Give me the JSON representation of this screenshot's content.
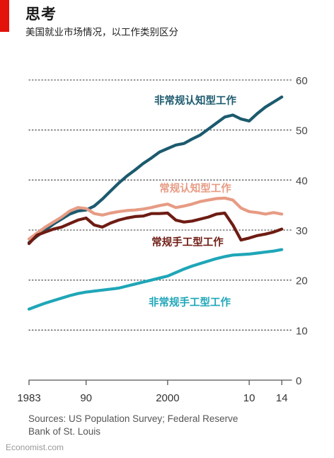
{
  "header": {
    "title": "思考",
    "subtitle": "美国就业市场情况，以工作类别区分"
  },
  "footer": {
    "source_line1": "Sources: US Population Survey; Federal Reserve",
    "source_line2": "Bank of St. Louis",
    "brand": "Economist.com"
  },
  "colors": {
    "accent": "#e3120b",
    "nonroutine_cognitive": "#1c5a6e",
    "routine_cognitive": "#e79b84",
    "routine_manual": "#6e1c13",
    "nonroutine_manual": "#1fa6b8"
  },
  "chart_data": {
    "type": "line",
    "title": "",
    "xlabel": "",
    "ylabel": "",
    "xlim": [
      1983,
      2014.5
    ],
    "ylim": [
      0,
      60
    ],
    "x_ticks": [
      {
        "value": 1983,
        "label": "1983"
      },
      {
        "value": 1990,
        "label": "90"
      },
      {
        "value": 2000,
        "label": "2000"
      },
      {
        "value": 2010,
        "label": "10"
      },
      {
        "value": 2014,
        "label": "14"
      }
    ],
    "y_ticks": [
      0,
      10,
      20,
      30,
      40,
      50,
      60
    ],
    "y_axis_side": "right",
    "grid": "horizontal-dotted",
    "legend": "inline labels",
    "series": [
      {
        "name": "非常规认知型工作",
        "color_key": "nonroutine_cognitive",
        "x": [
          1983,
          1984,
          1985,
          1986,
          1987,
          1988,
          1989,
          1990,
          1991,
          1992,
          1993,
          1994,
          1995,
          1996,
          1997,
          1998,
          1999,
          2000,
          2001,
          2002,
          2003,
          2004,
          2005,
          2006,
          2007,
          2008,
          2009,
          2010,
          2011,
          2012,
          2013,
          2014
        ],
        "y": [
          27.5,
          28.8,
          30.0,
          31.2,
          32.2,
          33.2,
          33.8,
          34.0,
          34.8,
          36.2,
          37.8,
          39.4,
          40.8,
          42.0,
          43.3,
          44.4,
          45.6,
          46.3,
          47.0,
          47.3,
          48.2,
          49.0,
          50.2,
          51.4,
          52.6,
          53.0,
          52.2,
          51.8,
          53.3,
          54.6,
          55.6,
          56.6
        ]
      },
      {
        "name": "常规认知型工作",
        "color_key": "routine_cognitive",
        "x": [
          1983,
          1984,
          1985,
          1986,
          1987,
          1988,
          1989,
          1990,
          1991,
          1992,
          1993,
          1994,
          1995,
          1996,
          1997,
          1998,
          1999,
          2000,
          2001,
          2002,
          2003,
          2004,
          2005,
          2006,
          2007,
          2008,
          2009,
          2010,
          2011,
          2012,
          2013,
          2014
        ],
        "y": [
          28.2,
          29.4,
          30.6,
          31.6,
          32.6,
          33.8,
          34.5,
          34.3,
          33.3,
          33.0,
          33.4,
          33.7,
          33.9,
          34.0,
          34.2,
          34.5,
          34.9,
          35.2,
          34.5,
          34.8,
          35.2,
          35.7,
          36.0,
          36.3,
          36.4,
          36.0,
          34.4,
          33.7,
          33.5,
          33.2,
          33.5,
          33.2
        ]
      },
      {
        "name": "常规手工型工作",
        "color_key": "routine_manual",
        "x": [
          1983,
          1984,
          1985,
          1986,
          1987,
          1988,
          1989,
          1990,
          1991,
          1992,
          1993,
          1994,
          1995,
          1996,
          1997,
          1998,
          1999,
          2000,
          2001,
          2002,
          2003,
          2004,
          2005,
          2006,
          2007,
          2008,
          2009,
          2010,
          2011,
          2012,
          2013,
          2014
        ],
        "y": [
          27.3,
          29.0,
          29.6,
          30.2,
          30.6,
          31.3,
          32.0,
          32.4,
          31.0,
          30.6,
          31.4,
          32.0,
          32.4,
          32.7,
          32.8,
          33.3,
          33.3,
          33.4,
          32.0,
          31.6,
          31.8,
          32.2,
          32.6,
          33.2,
          33.4,
          31.0,
          28.0,
          28.4,
          28.9,
          29.2,
          29.6,
          30.2
        ]
      },
      {
        "name": "非常规手工型工作",
        "color_key": "nonroutine_manual",
        "x": [
          1983,
          1984,
          1985,
          1986,
          1987,
          1988,
          1989,
          1990,
          1991,
          1992,
          1993,
          1994,
          1995,
          1996,
          1997,
          1998,
          1999,
          2000,
          2001,
          2002,
          2003,
          2004,
          2005,
          2006,
          2007,
          2008,
          2009,
          2010,
          2011,
          2012,
          2013,
          2014
        ],
        "y": [
          14.2,
          14.8,
          15.4,
          15.9,
          16.4,
          16.9,
          17.3,
          17.6,
          17.8,
          18.0,
          18.2,
          18.4,
          18.8,
          19.2,
          19.6,
          20.0,
          20.4,
          20.8,
          21.5,
          22.2,
          22.8,
          23.3,
          23.8,
          24.3,
          24.7,
          25.0,
          25.1,
          25.2,
          25.4,
          25.6,
          25.8,
          26.1
        ]
      }
    ]
  }
}
